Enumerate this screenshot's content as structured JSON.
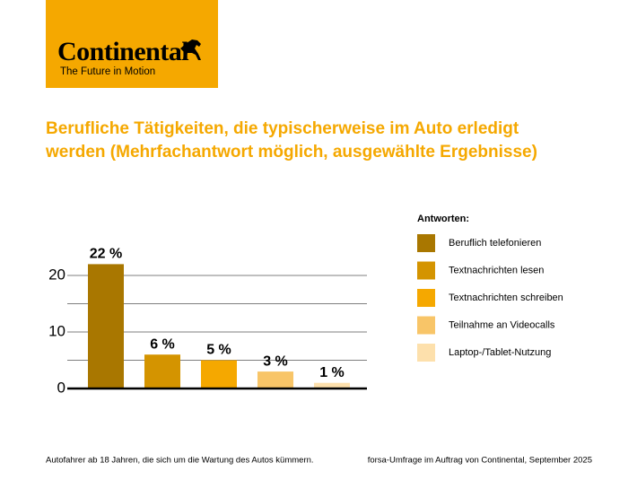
{
  "chart_data": {
    "type": "bar",
    "brand": "Continental",
    "tagline": "The Future in Motion",
    "title": "Berufliche Tätigkeiten, die typischerweise im Auto erledigt werden (Mehrfachantwort möglich, ausgewählte Ergebnisse)",
    "legend_title": "Antworten:",
    "categories": [
      "Beruflich telefonieren",
      "Textnachrichten lesen",
      "Textnachrichten schreiben",
      "Teilnahme an Videocalls",
      "Laptop-/Tablet-Nutzung"
    ],
    "values": [
      22,
      6,
      5,
      3,
      1
    ],
    "value_labels": [
      "22 %",
      "6 %",
      "5 %",
      "3 %",
      "1 %"
    ],
    "colors": [
      "#a97700",
      "#d49400",
      "#f5a800",
      "#f8c568",
      "#fde0ac"
    ],
    "ylim": [
      0,
      20
    ],
    "yticks": [
      0,
      10,
      20
    ],
    "minor_gridlines": [
      5,
      15
    ],
    "grid": true,
    "note": "Autofahrer ab 18 Jahren, die sich um die Wartung des Autos kümmern.",
    "source": "forsa-Umfrage im Auftrag von Continental, September 2025"
  }
}
